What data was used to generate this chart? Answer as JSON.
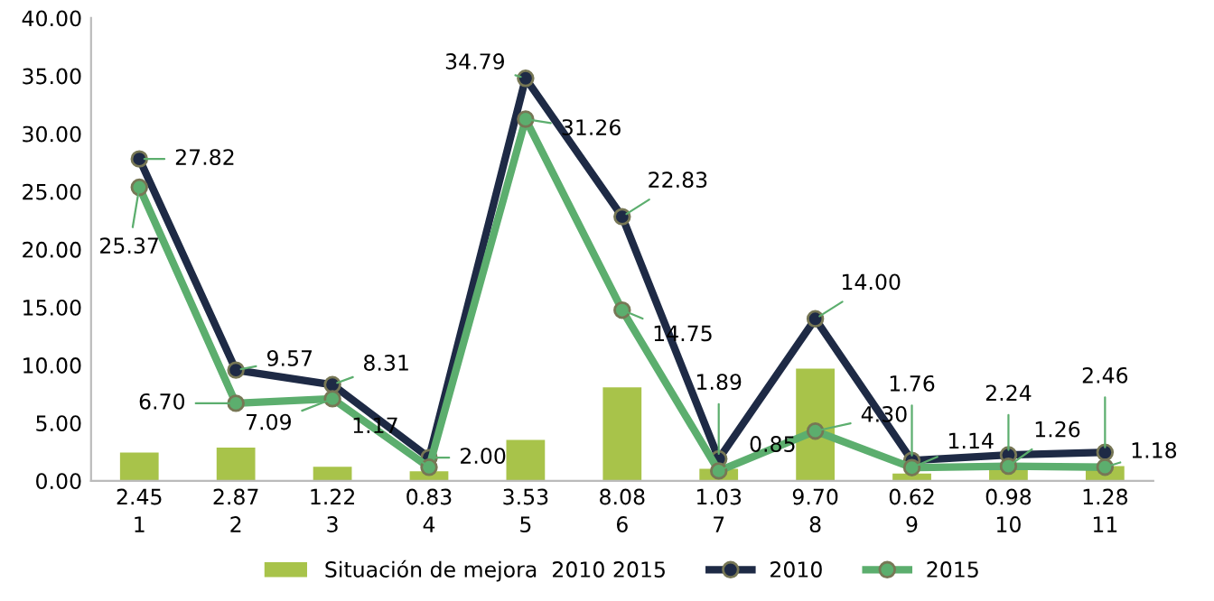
{
  "chart_data": {
    "type": "bar",
    "categories": [
      "1",
      "2",
      "3",
      "4",
      "5",
      "6",
      "7",
      "8",
      "9",
      "10",
      "11"
    ],
    "series": [
      {
        "name": "Situación de mejora  2010 2015",
        "color": "#a8c34a",
        "values": [
          2.45,
          2.87,
          1.22,
          0.83,
          3.53,
          8.08,
          1.03,
          9.7,
          0.62,
          0.98,
          1.28
        ],
        "value_labels": [
          "2.45",
          "2.87",
          "1.22",
          "0.83",
          "3.53",
          "8.08",
          "1.03",
          "9.70",
          "0.62",
          "0.98",
          "1.28"
        ]
      },
      {
        "name": "2010",
        "type": "line",
        "color": "#1e2a45",
        "values": [
          27.82,
          9.57,
          8.31,
          2.0,
          34.79,
          22.83,
          1.89,
          14.0,
          1.76,
          2.24,
          2.46
        ],
        "value_labels": [
          "27.82",
          "9.57",
          "8.31",
          "2.00",
          "34.79",
          "22.83",
          "1.89",
          "14.00",
          "1.76",
          "2.24",
          "2.46"
        ]
      },
      {
        "name": "2015",
        "type": "line",
        "color": "#5cae6e",
        "values": [
          25.37,
          6.7,
          7.09,
          1.17,
          31.26,
          14.75,
          0.85,
          4.3,
          1.14,
          1.26,
          1.18
        ],
        "value_labels": [
          "25.37",
          "6.70",
          "7.09",
          "1.17",
          "31.26",
          "14.75",
          "0.85",
          "4.30",
          "1.14",
          "1.26",
          "1.18"
        ]
      }
    ],
    "ylim": [
      0,
      40
    ],
    "yticks": [
      {
        "value": 0,
        "label": "0.00"
      },
      {
        "value": 5,
        "label": "5.00"
      },
      {
        "value": 10,
        "label": "10.00"
      },
      {
        "value": 15,
        "label": "15.00"
      },
      {
        "value": 20,
        "label": "20.00"
      },
      {
        "value": 25,
        "label": "25.00"
      },
      {
        "value": 30,
        "label": "30.00"
      },
      {
        "value": 35,
        "label": "35.00"
      },
      {
        "value": 40,
        "label": "40.00"
      }
    ],
    "marker": "circle",
    "line_style": "solid",
    "grid": false,
    "legend": "bottom"
  }
}
